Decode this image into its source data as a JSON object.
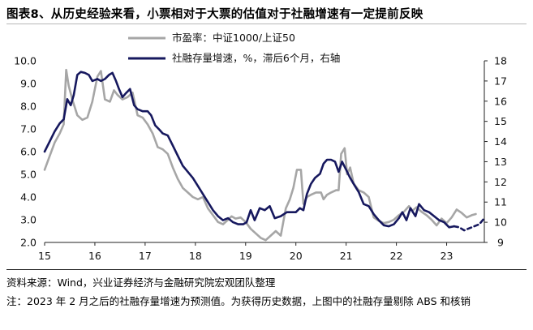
{
  "title": "图表8、从历史经验来看，小票相对于大票的估值对于社融增速有一定提前反映",
  "source": "资料来源：Wind，兴业证券经济与金融研究院宏观团队整理",
  "note": "注：2023 年 2 月之后的社融存量增速为预测值。为获得历史数据，上图中的社融存量剔除 ABS 和核销",
  "chart_data": {
    "type": "line",
    "legend_position": "top-center",
    "grid": false,
    "x_ticks": [
      "15",
      "16",
      "17",
      "18",
      "19",
      "20",
      "21",
      "22",
      "23"
    ],
    "xlim": [
      2015.0,
      2023.75
    ],
    "left_axis": {
      "ylim": [
        2.0,
        10.0
      ],
      "ticks": [
        "2.0",
        "3.0",
        "4.0",
        "5.0",
        "6.0",
        "7.0",
        "8.0",
        "9.0",
        "10.0"
      ]
    },
    "right_axis": {
      "ylim": [
        9,
        18
      ],
      "ticks": [
        "9",
        "10",
        "11",
        "12",
        "13",
        "14",
        "15",
        "16",
        "17",
        "18"
      ]
    },
    "series": [
      {
        "name": "市盈率：中证1000/上证50",
        "axis": "left",
        "color": "#a6a6a6",
        "style": "solid",
        "points": [
          [
            2015.0,
            5.2
          ],
          [
            2015.1,
            5.8
          ],
          [
            2015.2,
            6.4
          ],
          [
            2015.3,
            6.8
          ],
          [
            2015.38,
            7.2
          ],
          [
            2015.43,
            9.6
          ],
          [
            2015.48,
            8.9
          ],
          [
            2015.55,
            8.3
          ],
          [
            2015.65,
            7.6
          ],
          [
            2015.75,
            7.4
          ],
          [
            2015.85,
            7.5
          ],
          [
            2015.95,
            8.2
          ],
          [
            2016.05,
            9.3
          ],
          [
            2016.12,
            9.55
          ],
          [
            2016.2,
            8.3
          ],
          [
            2016.3,
            8.2
          ],
          [
            2016.38,
            8.7
          ],
          [
            2016.45,
            8.5
          ],
          [
            2016.55,
            8.3
          ],
          [
            2016.65,
            8.4
          ],
          [
            2016.75,
            8.6
          ],
          [
            2016.85,
            7.6
          ],
          [
            2016.95,
            7.5
          ],
          [
            2017.05,
            7.2
          ],
          [
            2017.15,
            6.8
          ],
          [
            2017.25,
            6.2
          ],
          [
            2017.35,
            6.1
          ],
          [
            2017.45,
            5.9
          ],
          [
            2017.55,
            5.3
          ],
          [
            2017.65,
            4.8
          ],
          [
            2017.75,
            4.4
          ],
          [
            2017.85,
            4.2
          ],
          [
            2017.95,
            4.0
          ],
          [
            2018.05,
            3.9
          ],
          [
            2018.15,
            4.0
          ],
          [
            2018.25,
            3.5
          ],
          [
            2018.35,
            3.2
          ],
          [
            2018.45,
            2.9
          ],
          [
            2018.55,
            2.8
          ],
          [
            2018.65,
            3.0
          ],
          [
            2018.72,
            3.15
          ],
          [
            2018.8,
            3.05
          ],
          [
            2018.9,
            3.1
          ],
          [
            2019.0,
            2.9
          ],
          [
            2019.1,
            2.6
          ],
          [
            2019.2,
            2.4
          ],
          [
            2019.3,
            2.2
          ],
          [
            2019.4,
            2.1
          ],
          [
            2019.5,
            2.3
          ],
          [
            2019.6,
            2.5
          ],
          [
            2019.7,
            2.3
          ],
          [
            2019.8,
            3.5
          ],
          [
            2019.88,
            3.9
          ],
          [
            2019.95,
            4.4
          ],
          [
            2020.02,
            5.2
          ],
          [
            2020.1,
            5.2
          ],
          [
            2020.15,
            3.7
          ],
          [
            2020.22,
            4.0
          ],
          [
            2020.3,
            4.1
          ],
          [
            2020.4,
            4.2
          ],
          [
            2020.5,
            4.2
          ],
          [
            2020.55,
            3.9
          ],
          [
            2020.62,
            4.1
          ],
          [
            2020.7,
            4.2
          ],
          [
            2020.8,
            4.3
          ],
          [
            2020.85,
            4.3
          ],
          [
            2020.9,
            5.9
          ],
          [
            2020.97,
            6.15
          ],
          [
            2021.02,
            5.0
          ],
          [
            2021.08,
            5.3
          ],
          [
            2021.15,
            4.6
          ],
          [
            2021.25,
            4.3
          ],
          [
            2021.35,
            4.2
          ],
          [
            2021.45,
            4.0
          ],
          [
            2021.55,
            3.1
          ],
          [
            2021.65,
            2.95
          ],
          [
            2021.75,
            2.85
          ],
          [
            2021.85,
            2.9
          ],
          [
            2021.95,
            3.0
          ],
          [
            2022.05,
            3.2
          ],
          [
            2022.15,
            3.35
          ],
          [
            2022.25,
            3.6
          ],
          [
            2022.32,
            3.4
          ],
          [
            2022.4,
            3.55
          ],
          [
            2022.5,
            3.35
          ],
          [
            2022.6,
            3.2
          ],
          [
            2022.7,
            3.0
          ],
          [
            2022.8,
            2.75
          ],
          [
            2022.9,
            3.05
          ],
          [
            2023.0,
            2.85
          ],
          [
            2023.1,
            3.1
          ],
          [
            2023.2,
            3.45
          ],
          [
            2023.3,
            3.3
          ],
          [
            2023.4,
            3.1
          ],
          [
            2023.5,
            3.2
          ],
          [
            2023.58,
            3.25
          ]
        ]
      },
      {
        "name": "社融存量增速，%，滞后6个月，右轴",
        "axis": "right",
        "color": "#16185e",
        "style": "solid",
        "points": [
          [
            2015.0,
            13.5
          ],
          [
            2015.1,
            14.0
          ],
          [
            2015.2,
            14.5
          ],
          [
            2015.3,
            14.9
          ],
          [
            2015.38,
            15.1
          ],
          [
            2015.45,
            16.1
          ],
          [
            2015.52,
            15.8
          ],
          [
            2015.58,
            16.3
          ],
          [
            2015.65,
            17.3
          ],
          [
            2015.72,
            17.45
          ],
          [
            2015.8,
            17.4
          ],
          [
            2015.88,
            17.3
          ],
          [
            2015.95,
            17.0
          ],
          [
            2016.05,
            17.1
          ],
          [
            2016.12,
            17.0
          ],
          [
            2016.2,
            17.1
          ],
          [
            2016.28,
            17.3
          ],
          [
            2016.35,
            17.4
          ],
          [
            2016.42,
            17.0
          ],
          [
            2016.48,
            16.6
          ],
          [
            2016.55,
            16.2
          ],
          [
            2016.62,
            16.4
          ],
          [
            2016.7,
            16.6
          ],
          [
            2016.78,
            15.8
          ],
          [
            2016.85,
            15.6
          ],
          [
            2016.95,
            15.5
          ],
          [
            2017.05,
            15.5
          ],
          [
            2017.12,
            15.3
          ],
          [
            2017.2,
            14.8
          ],
          [
            2017.28,
            14.6
          ],
          [
            2017.35,
            14.4
          ],
          [
            2017.45,
            14.3
          ],
          [
            2017.55,
            13.8
          ],
          [
            2017.65,
            13.3
          ],
          [
            2017.75,
            12.8
          ],
          [
            2017.85,
            12.5
          ],
          [
            2017.95,
            12.2
          ],
          [
            2018.05,
            11.8
          ],
          [
            2018.15,
            11.4
          ],
          [
            2018.25,
            11.0
          ],
          [
            2018.35,
            10.6
          ],
          [
            2018.45,
            10.3
          ],
          [
            2018.55,
            10.1
          ],
          [
            2018.65,
            10.2
          ],
          [
            2018.75,
            10.0
          ],
          [
            2018.85,
            9.9
          ],
          [
            2018.95,
            9.9
          ],
          [
            2019.02,
            10.0
          ],
          [
            2019.1,
            10.6
          ],
          [
            2019.18,
            10.1
          ],
          [
            2019.28,
            10.7
          ],
          [
            2019.38,
            10.6
          ],
          [
            2019.48,
            10.8
          ],
          [
            2019.58,
            10.2
          ],
          [
            2019.7,
            10.3
          ],
          [
            2019.82,
            10.5
          ],
          [
            2019.92,
            10.5
          ],
          [
            2020.0,
            10.5
          ],
          [
            2020.08,
            10.7
          ],
          [
            2020.15,
            10.6
          ],
          [
            2020.22,
            11.4
          ],
          [
            2020.3,
            11.9
          ],
          [
            2020.38,
            12.2
          ],
          [
            2020.48,
            12.4
          ],
          [
            2020.55,
            12.9
          ],
          [
            2020.62,
            13.1
          ],
          [
            2020.7,
            13.1
          ],
          [
            2020.78,
            13.0
          ],
          [
            2020.85,
            12.5
          ],
          [
            2020.92,
            13.0
          ],
          [
            2021.0,
            12.6
          ],
          [
            2021.08,
            12.2
          ],
          [
            2021.15,
            11.9
          ],
          [
            2021.25,
            11.5
          ],
          [
            2021.35,
            10.9
          ],
          [
            2021.45,
            10.8
          ],
          [
            2021.55,
            10.4
          ],
          [
            2021.65,
            10.1
          ],
          [
            2021.75,
            9.85
          ],
          [
            2021.85,
            9.8
          ],
          [
            2021.95,
            9.9
          ],
          [
            2022.05,
            10.2
          ],
          [
            2022.12,
            10.5
          ],
          [
            2022.2,
            10.1
          ],
          [
            2022.28,
            10.7
          ],
          [
            2022.38,
            10.3
          ],
          [
            2022.45,
            10.9
          ],
          [
            2022.55,
            10.6
          ],
          [
            2022.65,
            10.5
          ],
          [
            2022.75,
            10.3
          ],
          [
            2022.85,
            10.1
          ],
          [
            2022.95,
            10.0
          ],
          [
            2023.05,
            9.75
          ],
          [
            2023.15,
            9.8
          ]
        ]
      },
      {
        "name": "",
        "axis": "right",
        "color": "#16185e",
        "style": "dashed",
        "points": [
          [
            2023.15,
            9.8
          ],
          [
            2023.25,
            9.75
          ],
          [
            2023.35,
            9.6
          ],
          [
            2023.45,
            9.7
          ],
          [
            2023.55,
            9.8
          ],
          [
            2023.65,
            9.9
          ],
          [
            2023.75,
            10.2
          ]
        ]
      }
    ]
  }
}
